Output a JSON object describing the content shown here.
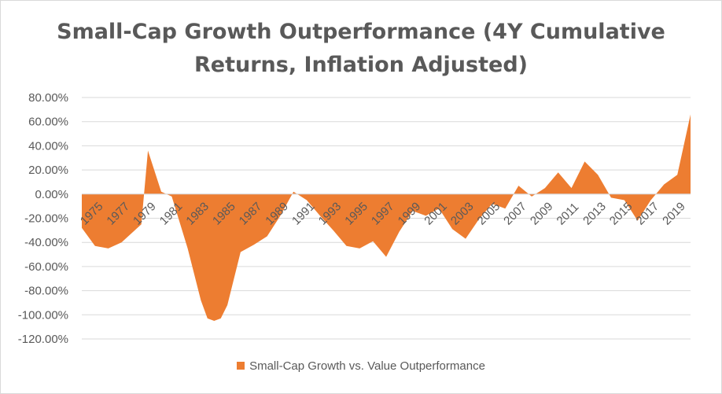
{
  "chart_data": {
    "type": "area",
    "title": "Small-Cap Growth Outperformance (4Y Cumulative Returns, Inflation Adjusted)",
    "title_lines": [
      "Small-Cap Growth Outperformance (4Y Cumulative",
      "Returns, Inflation Adjusted)"
    ],
    "xlabel": "",
    "ylabel": "",
    "ylim": [
      -1.2,
      0.8
    ],
    "xlim": [
      1975,
      2021
    ],
    "y_ticks": [
      0.8,
      0.6,
      0.4,
      0.2,
      0.0,
      -0.2,
      -0.4,
      -0.6,
      -0.8,
      -1.0,
      -1.2
    ],
    "y_tick_labels": [
      "80.00%",
      "60.00%",
      "40.00%",
      "20.00%",
      "0.00%",
      "-20.00%",
      "-40.00%",
      "-60.00%",
      "-80.00%",
      "-100.00%",
      "-120.00%"
    ],
    "x_tick_labels": [
      "1975",
      "1977",
      "1979",
      "1981",
      "1983",
      "1985",
      "1987",
      "1989",
      "1991",
      "1993",
      "1995",
      "1997",
      "1999",
      "2001",
      "2003",
      "2005",
      "2007",
      "2009",
      "2011",
      "2013",
      "2015",
      "2017",
      "2019"
    ],
    "grid": true,
    "legend_position": "bottom",
    "series": [
      {
        "name": "Small-Cap Growth vs. Value Outperformance",
        "color": "#ed7d31",
        "points": [
          [
            1975,
            -0.28
          ],
          [
            1976,
            -0.43
          ],
          [
            1977,
            -0.45
          ],
          [
            1978,
            -0.4
          ],
          [
            1979.5,
            -0.25
          ],
          [
            1980,
            0.36
          ],
          [
            1981,
            0.02
          ],
          [
            1981.8,
            -0.02
          ],
          [
            1983,
            -0.45
          ],
          [
            1984,
            -0.88
          ],
          [
            1984.5,
            -1.03
          ],
          [
            1985,
            -1.05
          ],
          [
            1985.5,
            -1.03
          ],
          [
            1986,
            -0.92
          ],
          [
            1987,
            -0.48
          ],
          [
            1988,
            -0.42
          ],
          [
            1989,
            -0.35
          ],
          [
            1990,
            -0.18
          ],
          [
            1991,
            0.02
          ],
          [
            1992,
            -0.05
          ],
          [
            1993,
            -0.18
          ],
          [
            1994,
            -0.3
          ],
          [
            1995,
            -0.43
          ],
          [
            1996,
            -0.45
          ],
          [
            1997,
            -0.39
          ],
          [
            1998,
            -0.52
          ],
          [
            1999,
            -0.31
          ],
          [
            2000,
            -0.14
          ],
          [
            2001,
            -0.18
          ],
          [
            2002,
            -0.12
          ],
          [
            2003,
            -0.29
          ],
          [
            2004,
            -0.37
          ],
          [
            2005,
            -0.21
          ],
          [
            2006,
            -0.08
          ],
          [
            2007,
            -0.12
          ],
          [
            2008,
            0.07
          ],
          [
            2009,
            -0.02
          ],
          [
            2010,
            0.05
          ],
          [
            2011,
            0.18
          ],
          [
            2012,
            0.05
          ],
          [
            2013,
            0.27
          ],
          [
            2014,
            0.16
          ],
          [
            2015,
            -0.03
          ],
          [
            2016,
            -0.05
          ],
          [
            2017,
            -0.22
          ],
          [
            2018,
            -0.05
          ],
          [
            2019,
            0.08
          ],
          [
            2020,
            0.16
          ],
          [
            2021,
            0.66
          ]
        ]
      }
    ]
  }
}
